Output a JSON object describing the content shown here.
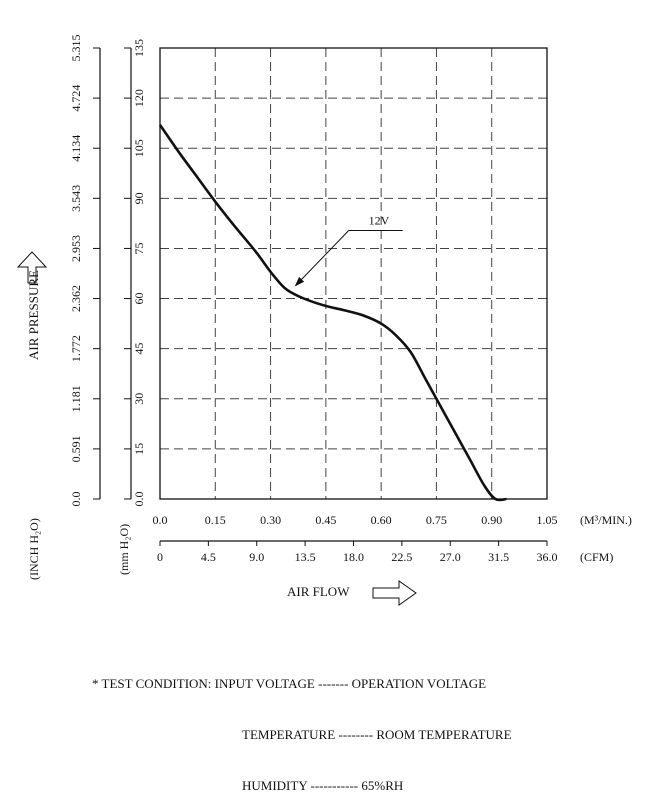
{
  "chart_data": {
    "type": "line",
    "x_label": "AIR FLOW",
    "x_unit_metric": "(M³/MIN.)",
    "x_unit_imperial": "(CFM)",
    "y_label": "AIR PRESSURE",
    "y_unit_mm": "(mm H₂O)",
    "y_unit_inch": "(INCH H₂O)",
    "x_ticks_metric": [
      "0.0",
      "0.15",
      "0.30",
      "0.45",
      "0.60",
      "0.75",
      "0.90",
      "1.05"
    ],
    "x_ticks_cfm": [
      "0",
      "4.5",
      "9.0",
      "13.5",
      "18.0",
      "22.5",
      "27.0",
      "31.5",
      "36.0"
    ],
    "y_ticks_mm": [
      "0.0",
      "15",
      "30",
      "45",
      "60",
      "75",
      "90",
      "105",
      "120",
      "135"
    ],
    "y_ticks_inch": [
      "0.0",
      "0.591",
      "1.181",
      "1.772",
      "2.362",
      "2.953",
      "3.543",
      "4.134",
      "4.724",
      "5.315"
    ],
    "xlim": [
      0,
      1.05
    ],
    "ylim": [
      0,
      135
    ],
    "grid": true,
    "series": [
      {
        "name": "12V",
        "x": [
          0.0,
          0.05,
          0.1,
          0.15,
          0.2,
          0.26,
          0.3,
          0.34,
          0.38,
          0.42,
          0.46,
          0.5,
          0.55,
          0.6,
          0.64,
          0.68,
          0.72,
          0.76,
          0.8,
          0.84,
          0.88,
          0.91,
          0.94
        ],
        "y": [
          112,
          104,
          96.5,
          89,
          82,
          74,
          68,
          63,
          60.5,
          58.8,
          57.5,
          56.5,
          55,
          52.5,
          49,
          44,
          36,
          28,
          20,
          12,
          4,
          0,
          0
        ]
      }
    ],
    "annotation": {
      "text": "12V",
      "at": [
        0.36,
        63
      ]
    }
  },
  "test_condition": {
    "prefix": "* TEST CONDITION:",
    "rows": [
      {
        "label": "INPUT VOLTAGE",
        "dashes": "-------",
        "value": "OPERATION VOLTAGE"
      },
      {
        "label": "TEMPERATURE",
        "dashes": "--------",
        "value": "ROOM TEMPERATURE"
      },
      {
        "label": "HUMIDITY",
        "dashes": "-----------",
        "value": "65%RH"
      }
    ]
  }
}
